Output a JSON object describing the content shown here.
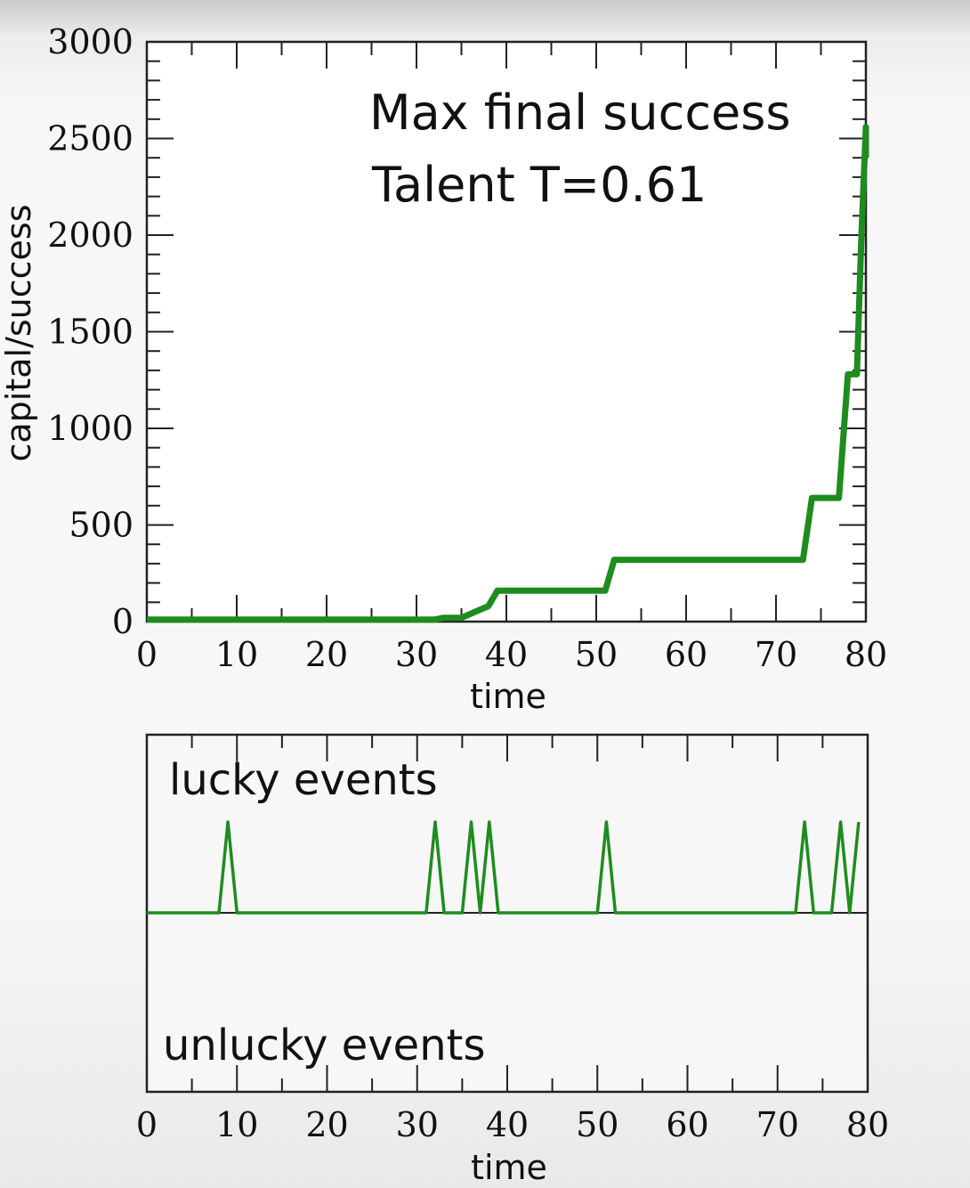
{
  "chart_data": [
    {
      "type": "line",
      "title": "",
      "annotations": [
        "Max final success",
        "Talent T=0.61"
      ],
      "xlabel": "time",
      "ylabel": "capital/success",
      "xlim": [
        0,
        80
      ],
      "ylim": [
        0,
        3000
      ],
      "xticks": [
        "0",
        "10",
        "20",
        "30",
        "40",
        "50",
        "60",
        "70",
        "80"
      ],
      "yticks": [
        "0",
        "500",
        "1000",
        "1500",
        "2000",
        "2500",
        "3000"
      ],
      "grid": false,
      "color": "#1e8c1e",
      "series": [
        {
          "x": [
            0,
            32,
            33,
            35,
            36,
            38,
            39,
            51,
            52,
            73,
            74,
            77,
            78,
            79,
            79.5,
            80,
            80
          ],
          "y": [
            10,
            10,
            20,
            20,
            40,
            80,
            160,
            160,
            320,
            320,
            640,
            640,
            1280,
            1280,
            2000,
            2560,
            2400
          ]
        }
      ]
    },
    {
      "type": "line",
      "title": "",
      "annotations": [
        "lucky events",
        "unlucky events"
      ],
      "xlabel": "time",
      "ylabel": "",
      "xlim": [
        0,
        80
      ],
      "ylim": [
        -1,
        1
      ],
      "xticks": [
        "0",
        "10",
        "20",
        "30",
        "40",
        "50",
        "60",
        "70",
        "80"
      ],
      "grid": false,
      "color": "#1e8c1e",
      "series": [
        {
          "x": [
            0,
            3,
            8,
            9,
            10,
            31,
            32,
            33,
            35,
            36,
            37,
            38,
            39,
            50,
            51,
            52,
            72,
            73,
            74,
            76,
            77,
            78,
            79
          ],
          "y": [
            0,
            0,
            0,
            1,
            0,
            0,
            1,
            0,
            0,
            1,
            0,
            1,
            0,
            0,
            1,
            0,
            0,
            1,
            0,
            0,
            1,
            0,
            1
          ]
        }
      ]
    }
  ]
}
